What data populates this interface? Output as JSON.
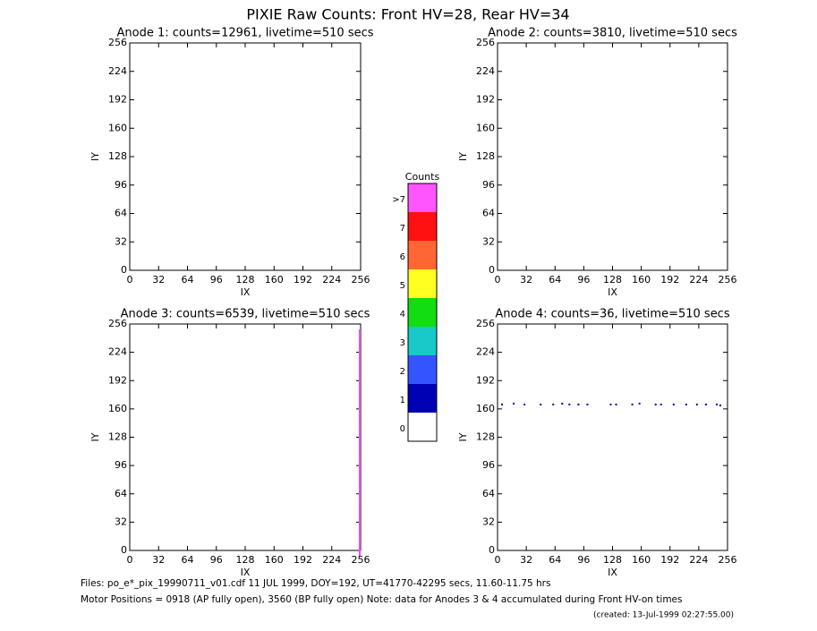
{
  "title": "PIXIE Raw Counts:  Front HV=28, Rear HV=34",
  "chart_data": [
    {
      "type": "scatter",
      "title": "Anode 1: counts=12961, livetime=510 secs",
      "xlabel": "IX",
      "ylabel": "IY",
      "xlim": [
        0,
        256
      ],
      "ylim": [
        0,
        256
      ],
      "xticks": [
        0,
        32,
        64,
        96,
        128,
        160,
        192,
        224,
        256
      ],
      "yticks": [
        0,
        32,
        64,
        96,
        128,
        160,
        192,
        224,
        256
      ]
    },
    {
      "type": "scatter",
      "title": "Anode 2: counts=3810, livetime=510 secs",
      "xlabel": "IX",
      "ylabel": "IY",
      "xlim": [
        0,
        256
      ],
      "ylim": [
        0,
        256
      ],
      "xticks": [
        0,
        32,
        64,
        96,
        128,
        160,
        192,
        224,
        256
      ],
      "yticks": [
        0,
        32,
        64,
        96,
        128,
        160,
        192,
        224,
        256
      ]
    },
    {
      "type": "scatter",
      "title": "Anode 3: counts=6539, livetime=510 secs",
      "xlabel": "IX",
      "ylabel": "IY",
      "xlim": [
        0,
        256
      ],
      "ylim": [
        0,
        256
      ],
      "xticks": [
        0,
        32,
        64,
        96,
        128,
        160,
        192,
        224,
        256
      ],
      "yticks": [
        0,
        32,
        64,
        96,
        128,
        160,
        192,
        224,
        256
      ],
      "color": "#ff44ff",
      "x": [
        255,
        255,
        255,
        255,
        255,
        255,
        255,
        255,
        255,
        255,
        255,
        255,
        255,
        255,
        255,
        255
      ],
      "y": [
        8,
        24,
        40,
        56,
        72,
        88,
        104,
        120,
        136,
        152,
        168,
        184,
        200,
        216,
        232,
        248
      ]
    },
    {
      "type": "scatter",
      "title": "Anode 4: counts=36, livetime=510 secs",
      "xlabel": "IX",
      "ylabel": "IY",
      "xlim": [
        0,
        256
      ],
      "ylim": [
        0,
        256
      ],
      "xticks": [
        0,
        32,
        64,
        96,
        128,
        160,
        192,
        224,
        256
      ],
      "yticks": [
        0,
        32,
        64,
        96,
        128,
        160,
        192,
        224,
        256
      ],
      "color": "#0000b4",
      "x": [
        5,
        18,
        30,
        48,
        62,
        72,
        80,
        90,
        100,
        126,
        132,
        150,
        158,
        176,
        182,
        196,
        210,
        222,
        232,
        244,
        248
      ],
      "y": [
        164,
        165,
        164,
        164,
        164,
        165,
        164,
        164,
        164,
        164,
        164,
        164,
        165,
        164,
        164,
        164,
        164,
        164,
        164,
        164,
        163
      ]
    }
  ],
  "colorbar": {
    "title": "Counts",
    "levels": [
      {
        "label": "0",
        "color": "#ffffff"
      },
      {
        "label": "1",
        "color": "#0000b4"
      },
      {
        "label": "2",
        "color": "#3355ff"
      },
      {
        "label": "3",
        "color": "#19c8c8"
      },
      {
        "label": "4",
        "color": "#11dd11"
      },
      {
        "label": "5",
        "color": "#ffff22"
      },
      {
        "label": "6",
        "color": "#ff6633"
      },
      {
        "label": "7",
        "color": "#ff1111"
      },
      {
        "label": ">7",
        "color": "#ff55ff"
      }
    ]
  },
  "footer": [
    "Files: po_e*_pix_19990711_v01.cdf    11 JUL 1999, DOY=192, UT=41770-42295 secs, 11.60-11.75 hrs",
    "Motor Positions = 0918 (AP fully open), 3560 (BP fully open)    Note: data for Anodes 3 & 4 accumulated during Front HV-on times",
    "(created: 13-Jul-1999 02:27:55.00)"
  ]
}
